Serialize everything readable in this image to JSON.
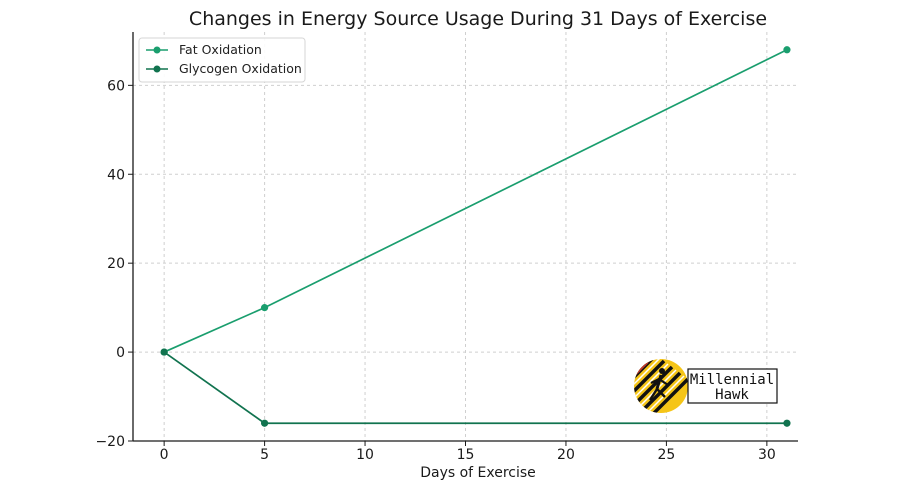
{
  "chart_data": {
    "type": "line",
    "title": "Changes in Energy Source Usage During 31 Days of Exercise",
    "xlabel": "Days of Exercise",
    "ylabel": "",
    "xlim": [
      -1.55,
      31.55
    ],
    "ylim": [
      -20,
      72
    ],
    "xticks": [
      0,
      5,
      10,
      15,
      20,
      25,
      30
    ],
    "yticks": [
      -20,
      0,
      20,
      40,
      60
    ],
    "grid": true,
    "legend_position": "top-left",
    "series": [
      {
        "name": "Fat Oxidation",
        "color": "#1a9e6e",
        "points": [
          [
            0,
            0
          ],
          [
            5,
            10
          ],
          [
            31,
            68
          ]
        ]
      },
      {
        "name": "Glycogen Oxidation",
        "color": "#11734f",
        "points": [
          [
            0,
            0
          ],
          [
            5,
            -16
          ],
          [
            31,
            -16
          ]
        ]
      }
    ]
  },
  "watermark": {
    "line1": "Millennial",
    "line2": "Hawk",
    "circle_color": "#f5c518"
  }
}
